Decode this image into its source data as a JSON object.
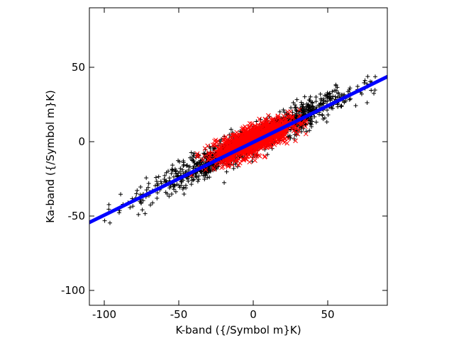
{
  "chart_data": {
    "type": "scatter",
    "title": "",
    "xlabel": "K-band ({/Symbol m}K)",
    "ylabel": "Ka-band ({/Symbol m}K)",
    "xlim": [
      -110,
      90
    ],
    "ylim": [
      -110,
      90
    ],
    "xticks": [
      -100,
      -50,
      0,
      50
    ],
    "yticks": [
      -100,
      -50,
      0,
      50
    ],
    "xtick_labels": [
      "-100",
      "-50",
      "0",
      "50"
    ],
    "ytick_labels": [
      "-100",
      "-50",
      "0",
      "50"
    ],
    "grid": false,
    "legend": "none",
    "series": [
      {
        "marker": "plus",
        "color": "#000000",
        "distribution": {
          "x_range": [
            -104,
            87
          ],
          "slope": 0.49,
          "intercept": 0.5,
          "x_sigma": 34,
          "y_scatter_sigma": 4.6,
          "count": 1400,
          "x_mean": 0
        }
      },
      {
        "marker": "cross",
        "color": "#ff0000",
        "distribution": {
          "x_range": [
            -42,
            38
          ],
          "slope": 0.4,
          "intercept": 1,
          "x_sigma": 12.5,
          "y_scatter_sigma": 4.6,
          "count": 1400,
          "x_mean": 0
        }
      },
      {
        "type": "line",
        "color": "#0000ff",
        "line_width": 5,
        "x": [
          -110,
          90
        ],
        "y": [
          -54.3,
          43.7
        ]
      }
    ]
  }
}
